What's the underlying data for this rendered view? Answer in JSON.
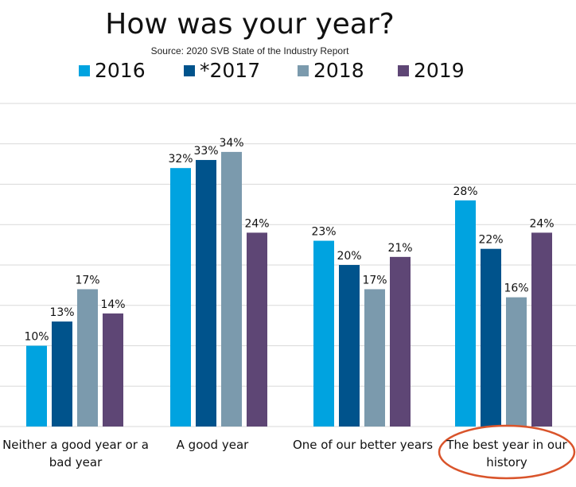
{
  "chart_data": {
    "type": "bar",
    "title": "How was your year?",
    "subtitle": "Source: 2020 SVB State of the Industry Report",
    "categories": [
      "Neither a good year or a bad year",
      "A good year",
      "One of our better years",
      "The best year in our history"
    ],
    "series": [
      {
        "name": "2016",
        "color": "#00A3E0",
        "values": [
          10,
          32,
          23,
          28
        ]
      },
      {
        "name": "*2017",
        "color": "#00538C",
        "values": [
          13,
          33,
          20,
          22
        ]
      },
      {
        "name": "2018",
        "color": "#7B9AAD",
        "values": [
          17,
          34,
          17,
          16
        ]
      },
      {
        "name": "2019",
        "color": "#5E4675",
        "values": [
          14,
          24,
          21,
          24
        ]
      }
    ],
    "value_suffix": "%",
    "ylim": [
      0,
      40
    ],
    "grid": true,
    "legend": "top",
    "highlight_category": "The best year in our history",
    "highlight_color": "#D9542B"
  }
}
